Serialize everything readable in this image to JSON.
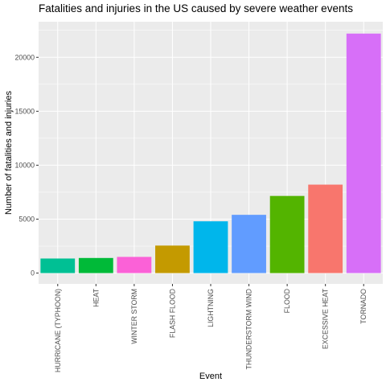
{
  "chart_data": {
    "type": "bar",
    "title": "Fatalities and injuries in the US caused by severe weather events",
    "xlabel": "Event",
    "ylabel": "Number of fatalities and injuries",
    "categories": [
      "HURRICANE (TYPHOON)",
      "HEAT",
      "WINTER STORM",
      "FLASH FLOOD",
      "LIGHTNING",
      "THUNDERSTORM WIND",
      "FLOOD",
      "EXCESSIVE HEAT",
      "TORNADO"
    ],
    "values": [
      1350,
      1400,
      1500,
      2550,
      4800,
      5400,
      7150,
      8200,
      22200
    ],
    "ylim": [
      -1000,
      23300
    ],
    "yticks": [
      0,
      5000,
      10000,
      15000,
      20000
    ],
    "grid": true,
    "legend": "none",
    "colors": [
      "#00C094",
      "#00BA38",
      "#FB61D7",
      "#C49A00",
      "#00B6EB",
      "#619CFF",
      "#53B400",
      "#F8766D",
      "#D76FF8"
    ],
    "panel_background": "#EBEBEB",
    "grid_color": "#FFFFFF"
  }
}
